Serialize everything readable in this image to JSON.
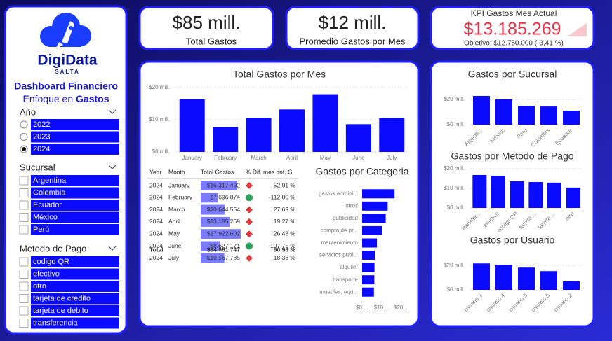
{
  "sidebar": {
    "logo": {
      "name": "DigiData",
      "region": "SALTA"
    },
    "title": "Dashboard Financiero",
    "subtitle": [
      "Enfoque en",
      "Gastos"
    ],
    "filters": [
      {
        "label": "Año",
        "kind": "radio",
        "options": [
          "2022",
          "2023",
          "2024"
        ],
        "selected_index": 2
      },
      {
        "label": "Sucursal",
        "kind": "checkbox",
        "options": [
          "Argentina",
          "Colombia",
          "Ecuador",
          "México",
          "Perú"
        ]
      },
      {
        "label": "Metodo de Pago",
        "kind": "checkbox",
        "options": [
          "codigo QR",
          "efectivo",
          "otro",
          "tarjeta de credito",
          "tarjeta de debito",
          "transferencia"
        ]
      }
    ]
  },
  "kpis": [
    {
      "value": "$85 mill.",
      "label": "Total Gastos"
    },
    {
      "value": "$12 mill.",
      "label": "Promedio Gastos por Mes"
    },
    {
      "title": "KPI Gastos Mes Actual",
      "value": "$13.185.269",
      "goal": "Objetivo: $12.750.000 (-3,41 %)",
      "color": "#e8334a"
    }
  ],
  "table": {
    "columns": [
      "Year",
      "Month",
      "Total Gastos",
      "% Dif. mes ant. G"
    ],
    "bar_color": "#7b7bff",
    "rows": [
      {
        "year": "2024",
        "month": "January",
        "total": {
          "value": 16317492,
          "label": "$16.317.492"
        },
        "change": "52,91 %",
        "icon": "red-diamond"
      },
      {
        "year": "2024",
        "month": "February",
        "total": {
          "value": 7696874,
          "label": "$7.696.874"
        },
        "change": "-112,00 %",
        "icon": "green-circle"
      },
      {
        "year": "2024",
        "month": "March",
        "total": {
          "value": 10644554,
          "label": "$10.644.554"
        },
        "change": "27,69 %",
        "icon": "red-diamond"
      },
      {
        "year": "2024",
        "month": "April",
        "total": {
          "value": 13185269,
          "label": "$13.185.269"
        },
        "change": "19,27 %",
        "icon": "red-diamond"
      },
      {
        "year": "2024",
        "month": "May",
        "total": {
          "value": 17922602,
          "label": "$17.922.602"
        },
        "change": "26,43 %",
        "icon": "red-diamond"
      },
      {
        "year": "2024",
        "month": "June",
        "total": {
          "value": 8627171,
          "label": "$8.627.171"
        },
        "change": "-107,75 %",
        "icon": "green-circle"
      },
      {
        "year": "2024",
        "month": "July",
        "total": {
          "value": 10567785,
          "label": "$10.567.785"
        },
        "change": "18,36 %",
        "icon": "red-diamond"
      }
    ],
    "total": {
      "label": "Total",
      "total": "$84.961.747",
      "change": "90,96 %"
    }
  },
  "chart_data": [
    {
      "type": "bar",
      "title": "Total Gastos por Mes",
      "categories": [
        "January",
        "February",
        "March",
        "April",
        "May",
        "June",
        "July"
      ],
      "values": [
        16.32,
        7.7,
        10.64,
        13.19,
        17.92,
        8.63,
        10.57
      ],
      "color": "#0a0aff",
      "grid": true,
      "ylim": [
        0,
        20
      ],
      "yticks": [
        {
          "value": 0,
          "label": "$0 mill."
        },
        {
          "value": 10,
          "label": "$10 mill."
        },
        {
          "value": 20,
          "label": "$20 mill."
        }
      ]
    },
    {
      "type": "hbar",
      "title": "Gastos por Categoria",
      "categories": [
        "gastos admini...",
        "otros",
        "publicidad",
        "compra de pr...",
        "mantenimiento",
        "servicios publ...",
        "alquiler",
        "transporte",
        "muebles, equ..."
      ],
      "values": [
        16.5,
        13,
        12,
        10,
        7.5,
        6.5,
        6.3,
        6.2,
        6
      ],
      "color": "#0a0aff",
      "xlim": [
        0,
        22
      ],
      "xticks": [
        {
          "value": 0,
          "label": "$0 ..."
        },
        {
          "value": 10,
          "label": "$10 ..."
        },
        {
          "value": 20,
          "label": "$20 ..."
        }
      ]
    },
    {
      "type": "bar",
      "title": "Gastos por Sucursal",
      "categories": [
        "Argenti...",
        "México",
        "Perú",
        "Colombia",
        "Ecuador"
      ],
      "values": [
        22.8,
        20,
        15,
        14.4,
        11.1
      ],
      "color": "#0a0aff",
      "grid": true,
      "ylim": [
        0,
        25
      ],
      "yticks": [
        {
          "value": 0,
          "label": "$0 mill."
        },
        {
          "value": 20,
          "label": "$20 mill."
        }
      ]
    },
    {
      "type": "bar",
      "title": "Gastos por Metodo de Pago",
      "categories": [
        "transfer...",
        "efectivo",
        "codigo QR",
        "tarjeta ...",
        "tarjeta ...",
        "otro"
      ],
      "values": [
        16.8,
        16.4,
        13.6,
        13.2,
        12.9,
        10.4
      ],
      "color": "#0a0aff",
      "grid": true,
      "ylim": [
        0,
        20
      ],
      "yticks": [
        {
          "value": 0,
          "label": "$0 mill."
        },
        {
          "value": 10,
          "label": "$10 mill."
        },
        {
          "value": 20,
          "label": "$20 mill."
        }
      ]
    },
    {
      "type": "bar",
      "title": "Gastos por Usuario",
      "categories": [
        "usuario 1",
        "usuario 4",
        "usuario 3",
        "usuario 5",
        "usuario 2"
      ],
      "values": [
        21.7,
        20.6,
        18.3,
        15.4,
        6.9
      ],
      "color": "#0a0aff",
      "grid": true,
      "ylim": [
        0,
        23
      ],
      "yticks": [
        {
          "value": 0,
          "label": "$0 mill."
        },
        {
          "value": 20,
          "label": "$20 mill."
        }
      ]
    }
  ]
}
